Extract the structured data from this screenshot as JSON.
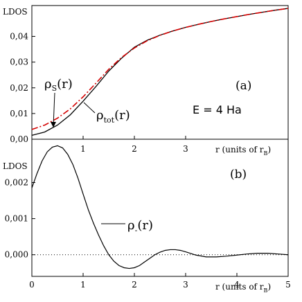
{
  "chart_data": [
    {
      "type": "line",
      "panel_label": "(a)",
      "ylabel": "LDOS",
      "xlabel_main": "r (units of r",
      "xlabel_sub": "B",
      "xlabel_close": ")",
      "xlim": [
        0,
        5
      ],
      "ylim": [
        0,
        0.052
      ],
      "x_ticks": [
        1,
        2,
        3
      ],
      "x_tick_labels": [
        "1",
        "2",
        "3"
      ],
      "y_ticks": [
        0,
        0.01,
        0.02,
        0.03,
        0.04
      ],
      "y_tick_labels": [
        "0,00",
        "0,01",
        "0,02",
        "0,03",
        "0,04"
      ],
      "annotation_energy": "E = 4 Ha",
      "annotation_s": {
        "main": "ρ",
        "sub": "S",
        "rest": "(r)"
      },
      "annotation_tot": {
        "main": "ρ",
        "sub": "tot",
        "rest": "(r)"
      },
      "series": [
        {
          "key": "rho_tot",
          "color": "#000000",
          "style": "solid",
          "x": [
            0,
            0.25,
            0.5,
            0.75,
            1.0,
            1.25,
            1.5,
            1.75,
            2.0,
            2.25,
            2.5,
            2.75,
            3.0,
            3.25,
            3.5,
            3.75,
            4.0,
            4.25,
            4.5,
            4.75,
            5.0
          ],
          "y": [
            0.0015,
            0.0028,
            0.0055,
            0.0095,
            0.0148,
            0.0205,
            0.0265,
            0.0315,
            0.0358,
            0.0385,
            0.0405,
            0.0421,
            0.0435,
            0.0447,
            0.0458,
            0.0468,
            0.0477,
            0.0486,
            0.0494,
            0.0502,
            0.0509
          ]
        },
        {
          "key": "rho_s",
          "color": "#d40000",
          "style": "dashdot",
          "x": [
            0,
            0.25,
            0.5,
            0.75,
            1.0,
            1.25,
            1.5,
            1.75,
            2.0,
            2.25,
            2.5,
            2.75,
            3.0,
            3.25,
            3.5,
            3.75,
            4.0,
            4.25,
            4.5,
            4.75,
            5.0
          ],
          "y": [
            0.0038,
            0.0055,
            0.0082,
            0.0118,
            0.0165,
            0.0218,
            0.0272,
            0.0318,
            0.0355,
            0.0383,
            0.0404,
            0.0421,
            0.0435,
            0.0447,
            0.0458,
            0.0468,
            0.0477,
            0.0486,
            0.0494,
            0.0502,
            0.0509
          ]
        }
      ]
    },
    {
      "type": "line",
      "panel_label": "(b)",
      "ylabel": "LDOS",
      "xlabel_main": "r (units of r",
      "xlabel_sub": "B",
      "xlabel_close": ")",
      "xlim": [
        0,
        5
      ],
      "ylim": [
        -0.0006,
        0.0032
      ],
      "x_ticks": [
        0,
        1,
        2,
        3,
        4,
        5
      ],
      "x_tick_labels": [
        "0",
        "1",
        "2",
        "3",
        "4",
        "5"
      ],
      "y_ticks": [
        0,
        0.001,
        0.002
      ],
      "y_tick_labels": [
        "0,000",
        "0,001",
        "0,002"
      ],
      "annotation_minus": {
        "main": "ρ",
        "sub": "-",
        "rest": "(r)"
      },
      "series": [
        {
          "key": "rho_minus",
          "color": "#000000",
          "style": "solid",
          "x": [
            0,
            0.1,
            0.2,
            0.3,
            0.4,
            0.5,
            0.6,
            0.7,
            0.8,
            0.9,
            1.0,
            1.1,
            1.2,
            1.3,
            1.4,
            1.5,
            1.6,
            1.7,
            1.8,
            1.9,
            2.0,
            2.1,
            2.2,
            2.3,
            2.4,
            2.5,
            2.6,
            2.7,
            2.8,
            2.9,
            3.0,
            3.2,
            3.4,
            3.6,
            3.8,
            4.0,
            4.2,
            4.4,
            4.6,
            4.8,
            5.0
          ],
          "y": [
            0.00185,
            0.00225,
            0.0026,
            0.00285,
            0.00298,
            0.00302,
            0.00296,
            0.00278,
            0.0025,
            0.00212,
            0.00168,
            0.00125,
            0.00088,
            0.00055,
            0.00025,
            0.0,
            -0.00018,
            -0.0003,
            -0.00036,
            -0.00038,
            -0.00036,
            -0.0003,
            -0.0002,
            -0.0001,
            0.0,
            7e-05,
            0.00012,
            0.00014,
            0.00014,
            0.00012,
            8e-05,
            -1e-05,
            -6e-05,
            -6e-05,
            -4e-05,
            -1e-05,
            2e-05,
            4e-05,
            4e-05,
            2e-05,
            0.0
          ]
        }
      ]
    }
  ]
}
